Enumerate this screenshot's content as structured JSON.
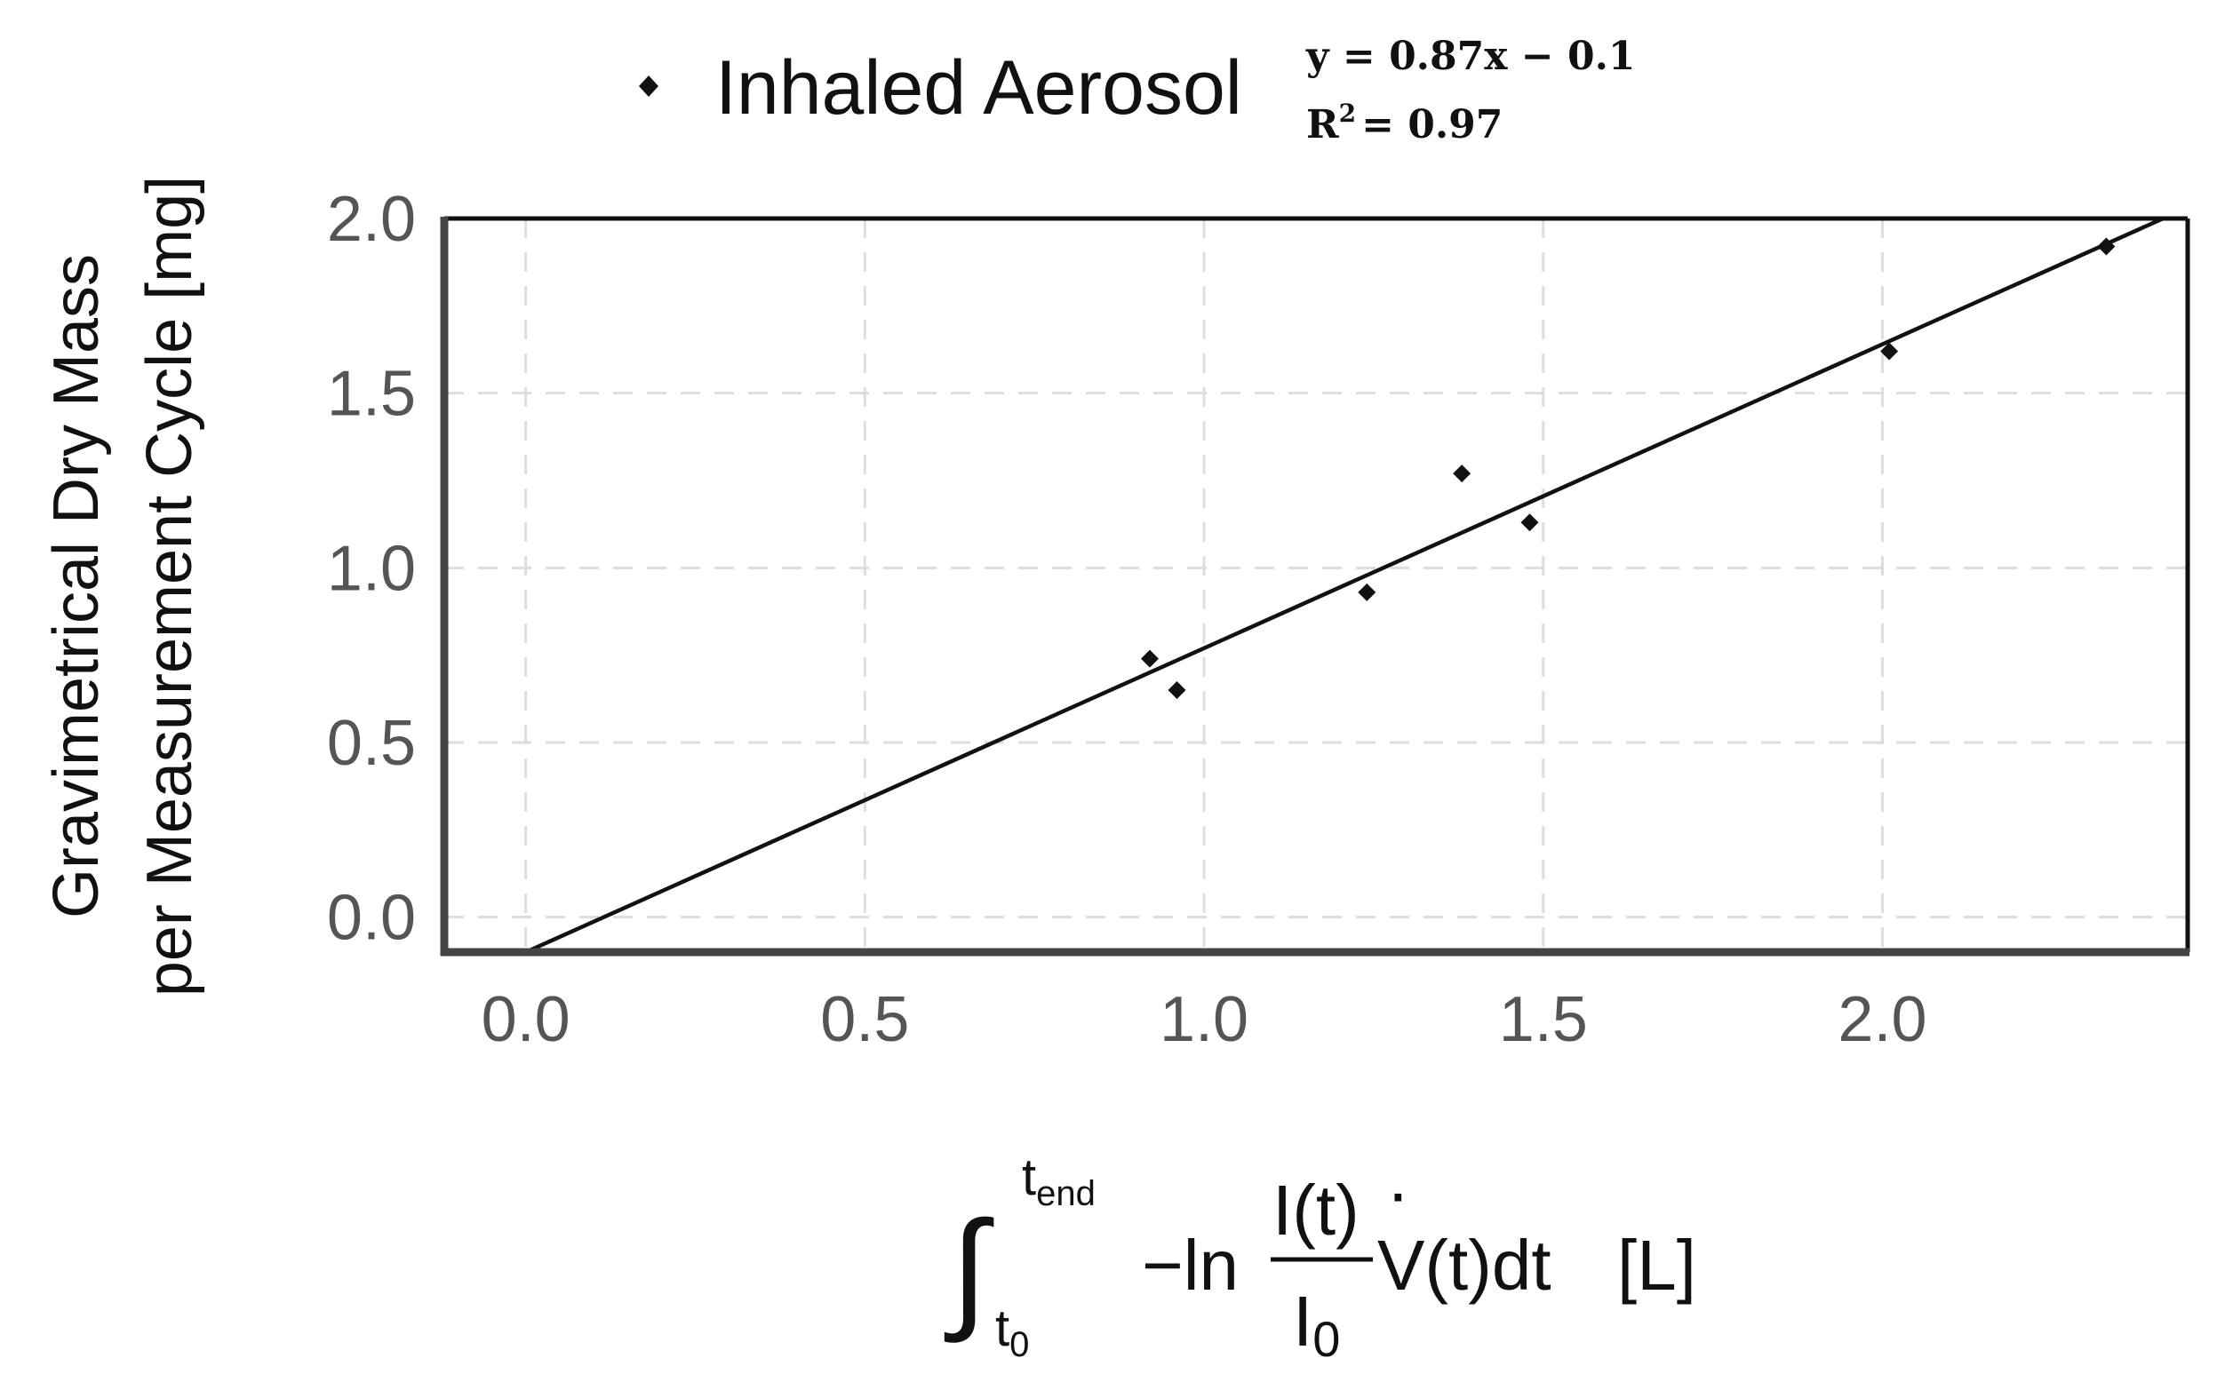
{
  "chart_data": {
    "type": "scatter",
    "series": [
      {
        "name": "Inhaled Aerosol",
        "x": [
          0.92,
          0.96,
          1.24,
          1.38,
          1.48,
          2.01,
          2.33
        ],
        "y": [
          0.74,
          0.65,
          0.93,
          1.27,
          1.13,
          1.62,
          1.92
        ],
        "marker": "diamond",
        "color": "#111111"
      }
    ],
    "fit": {
      "slope": 0.87,
      "intercept": -0.1,
      "color": "#111111"
    },
    "equation": "y = 0.87x − 0.1",
    "r2_label": "R",
    "r2_sup": "2",
    "r2_value": "= 0.97",
    "ylabel_line1": "Gravimetrical Dry Mass",
    "ylabel_line2": "per Measurement Cycle [mg]",
    "xlabel": {
      "integral": "∫",
      "upper_limit": "t",
      "upper_sub": "end",
      "lower_limit": "t",
      "lower_sub": "0",
      "minus_ln": "−ln",
      "numerator": "I(t)",
      "denominator_base": "I",
      "denominator_sub": "0",
      "flow_dot": "·",
      "flow": "V(t)dt",
      "unit": "[L]"
    },
    "xlim": [
      -0.12,
      2.45
    ],
    "ylim": [
      -0.1,
      2.0
    ],
    "xticks": [
      0.0,
      0.5,
      1.0,
      1.5,
      2.0
    ],
    "yticks": [
      0.0,
      0.5,
      1.0,
      1.5,
      2.0
    ],
    "xtick_labels": [
      "0.0",
      "0.5",
      "1.0",
      "1.5",
      "2.0"
    ],
    "ytick_labels": [
      "0.0",
      "0.5",
      "1.0",
      "1.5",
      "2.0"
    ],
    "grid": true,
    "legend_position": "top-center"
  }
}
